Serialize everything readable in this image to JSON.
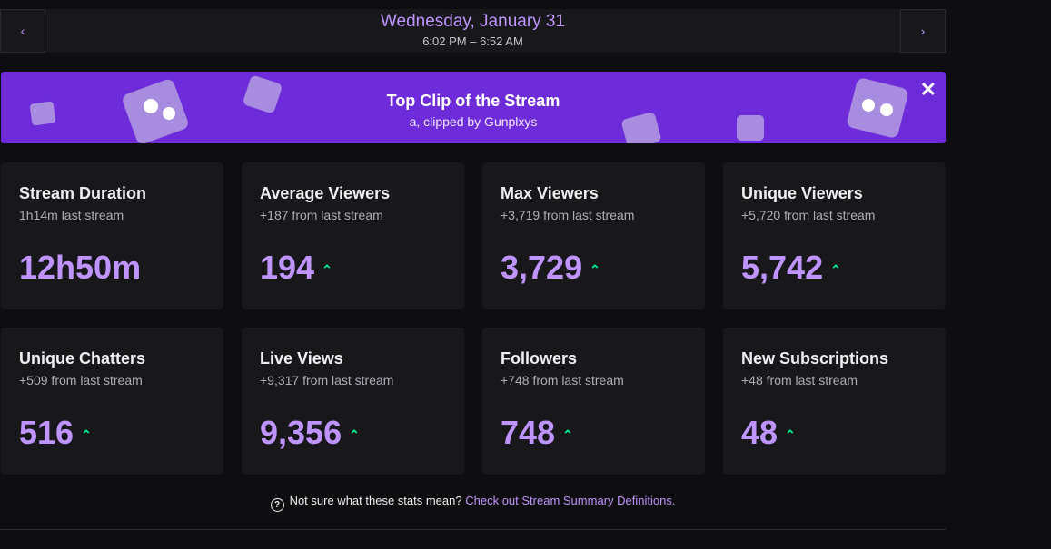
{
  "header": {
    "date": "Wednesday, January 31",
    "time": "6:02 PM – 6:52 AM"
  },
  "banner": {
    "title": "Top Clip of the Stream",
    "subtitle": "a, clipped by Gunplxys"
  },
  "stats": [
    {
      "title": "Stream Duration",
      "comparison": "1h14m last stream",
      "value": "12h50m",
      "trend": false
    },
    {
      "title": "Average Viewers",
      "comparison": "+187 from last stream",
      "value": "194",
      "trend": true
    },
    {
      "title": "Max Viewers",
      "comparison": "+3,719 from last stream",
      "value": "3,729",
      "trend": true
    },
    {
      "title": "Unique Viewers",
      "comparison": "+5,720 from last stream",
      "value": "5,742",
      "trend": true
    },
    {
      "title": "Unique Chatters",
      "comparison": "+509 from last stream",
      "value": "516",
      "trend": true
    },
    {
      "title": "Live Views",
      "comparison": "+9,317 from last stream",
      "value": "9,356",
      "trend": true
    },
    {
      "title": "Followers",
      "comparison": "+748 from last stream",
      "value": "748",
      "trend": true
    },
    {
      "title": "New Subscriptions",
      "comparison": "+48 from last stream",
      "value": "48",
      "trend": true
    }
  ],
  "footer": {
    "question": "Not sure what these stats mean?",
    "link": "Check out Stream Summary Definitions."
  }
}
